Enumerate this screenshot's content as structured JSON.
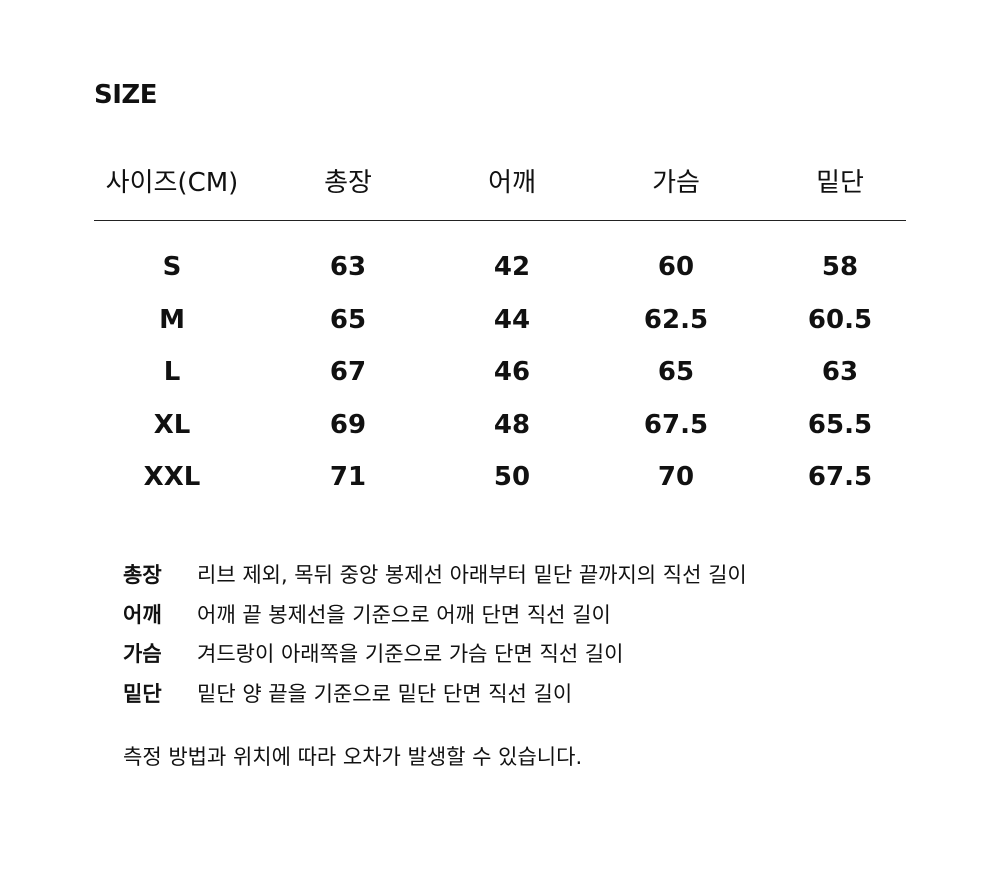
{
  "title": "SIZE",
  "table": {
    "headers": [
      "사이즈(CM)",
      "총장",
      "어깨",
      "가슴",
      "밑단"
    ],
    "rows": [
      [
        "S",
        "63",
        "42",
        "60",
        "58"
      ],
      [
        "M",
        "65",
        "44",
        "62.5",
        "60.5"
      ],
      [
        "L",
        "67",
        "46",
        "65",
        "63"
      ],
      [
        "XL",
        "69",
        "48",
        "67.5",
        "65.5"
      ],
      [
        "XXL",
        "71",
        "50",
        "70",
        "67.5"
      ]
    ]
  },
  "notes": [
    {
      "label": "총장",
      "text": "리브 제외, 목뒤 중앙 봉제선 아래부터 밑단 끝까지의 직선 길이"
    },
    {
      "label": "어깨",
      "text": "어깨 끝 봉제선을 기준으로 어깨 단면 직선 길이"
    },
    {
      "label": "가슴",
      "text": "겨드랑이 아래쪽을 기준으로 가슴 단면 직선 길이"
    },
    {
      "label": "밑단",
      "text": "밑단 양 끝을 기준으로 밑단 단면 직선 길이"
    }
  ],
  "footer": "측정 방법과 위치에 따라 오차가 발생할 수 있습니다."
}
